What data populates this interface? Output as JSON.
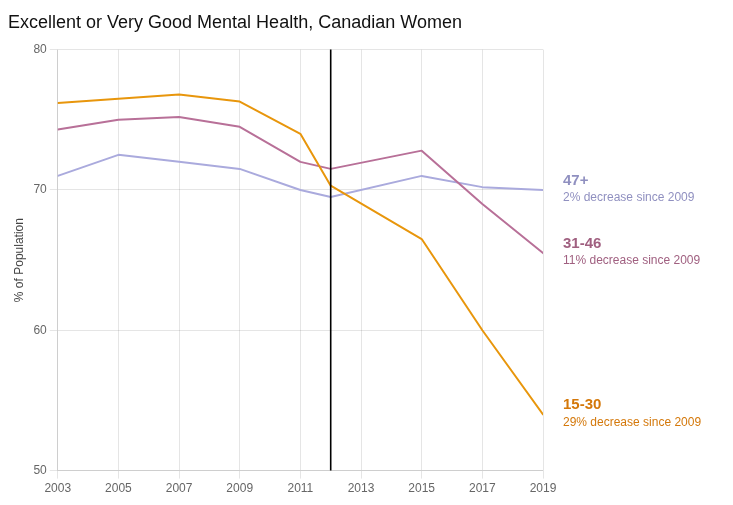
{
  "chart_data": {
    "type": "line",
    "title": "Excellent or Very Good Mental Health, Canadian Women",
    "ylabel": "% of Population",
    "x": [
      2003,
      2005,
      2007,
      2009,
      2011,
      2012,
      2015,
      2017,
      2019
    ],
    "series": [
      {
        "name": "15-30",
        "color": "#E8960C",
        "values": [
          76.2,
          76.5,
          76.8,
          76.3,
          74.0,
          70.3,
          66.5,
          60.0,
          54.0
        ],
        "annotation": {
          "text": "29% decrease since 2009",
          "color": "#D4780A"
        }
      },
      {
        "name": "31-46",
        "color": "#B87098",
        "values": [
          74.3,
          75.0,
          75.2,
          74.5,
          72.0,
          71.5,
          72.8,
          69.0,
          65.5
        ],
        "annotation": {
          "text": "11% decrease since 2009",
          "color": "#A06080"
        }
      },
      {
        "name": "47+",
        "color": "#AAAADD",
        "values": [
          71.0,
          72.5,
          72.0,
          71.5,
          70.0,
          69.5,
          71.0,
          70.2,
          70.0
        ],
        "annotation": {
          "text": "2% decrease since 2009",
          "color": "#9090C0"
        }
      }
    ],
    "vlines": [
      {
        "x": 2012,
        "color": "#000000"
      }
    ],
    "xlim": [
      2003,
      2019
    ],
    "xticks": [
      2003,
      2005,
      2007,
      2009,
      2011,
      2013,
      2015,
      2017,
      2019
    ],
    "ylim": [
      50,
      80
    ],
    "yticks": [
      50,
      60,
      70,
      80
    ],
    "grid": true
  }
}
